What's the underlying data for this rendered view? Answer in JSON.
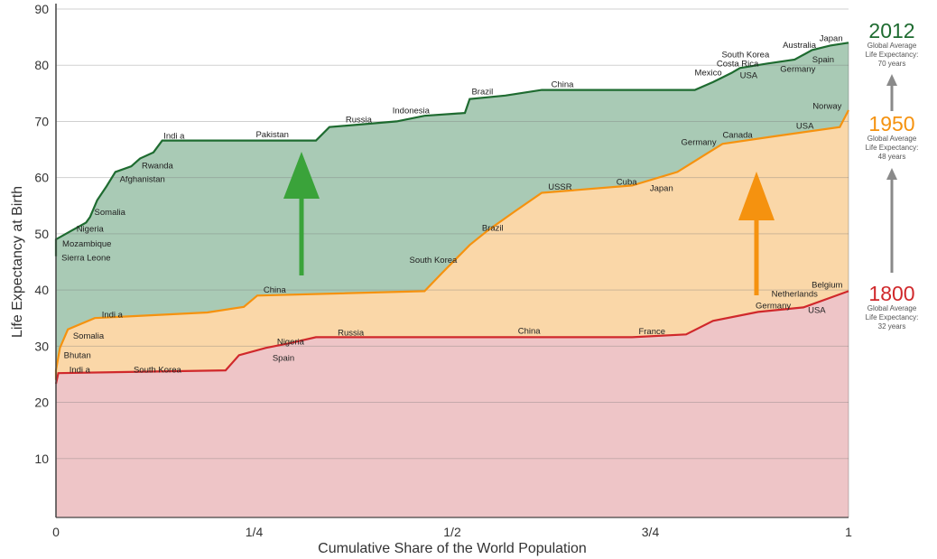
{
  "chart_data": {
    "type": "area",
    "title": "",
    "xlabel": "Cumulative Share of the World Population",
    "ylabel": "Life Expectancy at Birth",
    "xlim": [
      0,
      1
    ],
    "ylim": [
      0,
      90
    ],
    "x_ticks": [
      {
        "value": 0,
        "label": "0"
      },
      {
        "value": 0.25,
        "label": "1/4"
      },
      {
        "value": 0.5,
        "label": "1/2"
      },
      {
        "value": 0.75,
        "label": "3/4"
      },
      {
        "value": 1,
        "label": "1"
      }
    ],
    "y_ticks": [
      10,
      20,
      30,
      40,
      50,
      60,
      70,
      80,
      90
    ],
    "grid": true,
    "series": [
      {
        "name": "2012",
        "color": "#1e6b30",
        "fill": "#a9cab5",
        "legend_text": [
          "Global Average",
          "Life Expectancy:",
          "70 years"
        ],
        "points": [
          [
            0,
            46
          ],
          [
            0,
            49
          ],
          [
            0.02,
            50.6
          ],
          [
            0.038,
            52
          ],
          [
            0.043,
            53
          ],
          [
            0.052,
            56
          ],
          [
            0.064,
            58.5
          ],
          [
            0.075,
            61
          ],
          [
            0.095,
            62
          ],
          [
            0.106,
            63.4
          ],
          [
            0.123,
            64.5
          ],
          [
            0.134,
            66.6
          ],
          [
            0.328,
            66.6
          ],
          [
            0.345,
            69
          ],
          [
            0.43,
            70
          ],
          [
            0.465,
            71
          ],
          [
            0.516,
            71.5
          ],
          [
            0.522,
            74
          ],
          [
            0.567,
            74.6
          ],
          [
            0.613,
            75.6
          ],
          [
            0.806,
            75.6
          ],
          [
            0.829,
            77
          ],
          [
            0.852,
            78.6
          ],
          [
            0.863,
            79.5
          ],
          [
            0.897,
            80.3
          ],
          [
            0.932,
            81
          ],
          [
            0.954,
            82.7
          ],
          [
            0.977,
            83.5
          ],
          [
            1,
            84
          ]
        ],
        "annotations": [
          [
            "Indi a",
            0.149,
            67.4
          ],
          [
            "Pakistan",
            0.273,
            67.7
          ],
          [
            "Russia",
            0.382,
            70.3
          ],
          [
            "Indonesia",
            0.448,
            71.9
          ],
          [
            "Brazil",
            0.538,
            75.3
          ],
          [
            "China",
            0.639,
            76.6
          ],
          [
            "Mexico",
            0.823,
            78.7
          ],
          [
            "Costa Rica",
            0.86,
            80.3
          ],
          [
            "South Korea",
            0.87,
            81.9
          ],
          [
            "USA",
            0.874,
            78.2
          ],
          [
            "Australia",
            0.938,
            83.6
          ],
          [
            "Japan",
            0.978,
            84.8
          ],
          [
            "Spain",
            0.968,
            81
          ],
          [
            "Germany",
            0.936,
            79.3
          ],
          [
            "Rwanda",
            0.128,
            62.1
          ],
          [
            "Afghanistan",
            0.109,
            59.7
          ],
          [
            "Somalia",
            0.068,
            53.8
          ],
          [
            "Nigeria",
            0.043,
            50.9
          ],
          [
            "Mozambique",
            0.039,
            48.2
          ],
          [
            "Sierra Leone",
            0.038,
            45.7
          ]
        ]
      },
      {
        "name": "1950",
        "color": "#f5920f",
        "fill": "#fad7a8",
        "legend_text": [
          "Global Average",
          "Life Expectancy:",
          "48 years"
        ],
        "points": [
          [
            0,
            24
          ],
          [
            0,
            25.7
          ],
          [
            0.005,
            29.7
          ],
          [
            0.015,
            33
          ],
          [
            0.049,
            35
          ],
          [
            0.191,
            36
          ],
          [
            0.237,
            37
          ],
          [
            0.254,
            39
          ],
          [
            0.465,
            39.8
          ],
          [
            0.487,
            43
          ],
          [
            0.522,
            48
          ],
          [
            0.544,
            50.5
          ],
          [
            0.579,
            54
          ],
          [
            0.613,
            57.3
          ],
          [
            0.727,
            58.6
          ],
          [
            0.784,
            61
          ],
          [
            0.818,
            64
          ],
          [
            0.841,
            66
          ],
          [
            0.909,
            67.4
          ],
          [
            0.989,
            69
          ],
          [
            1,
            72
          ]
        ],
        "annotations": [
          [
            "Indi a",
            0.071,
            35.6
          ],
          [
            "Somalia",
            0.041,
            31.8
          ],
          [
            "Bhutan",
            0.027,
            28.4
          ],
          [
            "China",
            0.276,
            40
          ],
          [
            "South Korea",
            0.476,
            45.3
          ],
          [
            "Brazil",
            0.551,
            51
          ],
          [
            "USSR",
            0.636,
            58.3
          ],
          [
            "Cuba",
            0.72,
            59.2
          ],
          [
            "Japan",
            0.764,
            58.1
          ],
          [
            "Germany",
            0.811,
            66.3
          ],
          [
            "Canada",
            0.86,
            67.6
          ],
          [
            "USA",
            0.945,
            69.2
          ],
          [
            "Norway",
            0.973,
            72.7
          ]
        ]
      },
      {
        "name": "1800",
        "color": "#d0282b",
        "fill": "#eec5c7",
        "legend_text": [
          "Global Average",
          "Life Expectancy:",
          "32 years"
        ],
        "points": [
          [
            0,
            23.3
          ],
          [
            0.003,
            25.2
          ],
          [
            0.214,
            25.7
          ],
          [
            0.231,
            28.4
          ],
          [
            0.265,
            29.7
          ],
          [
            0.294,
            30.5
          ],
          [
            0.328,
            31.6
          ],
          [
            0.727,
            31.6
          ],
          [
            0.795,
            32.1
          ],
          [
            0.829,
            34.5
          ],
          [
            0.886,
            36.1
          ],
          [
            0.943,
            36.9
          ],
          [
            1,
            39.8
          ]
        ],
        "annotations": [
          [
            "Indi a",
            0.03,
            25.8
          ],
          [
            "South Korea",
            0.128,
            25.8
          ],
          [
            "Nigeria",
            0.296,
            30.8
          ],
          [
            "Spain",
            0.287,
            27.9
          ],
          [
            "Russia",
            0.372,
            32.4
          ],
          [
            "China",
            0.597,
            32.7
          ],
          [
            "France",
            0.752,
            32.6
          ],
          [
            "Germany",
            0.905,
            37.2
          ],
          [
            "Netherlands",
            0.932,
            39.3
          ],
          [
            "Belgium",
            0.973,
            40.9
          ],
          [
            "USA",
            0.96,
            36.4
          ]
        ]
      }
    ]
  }
}
